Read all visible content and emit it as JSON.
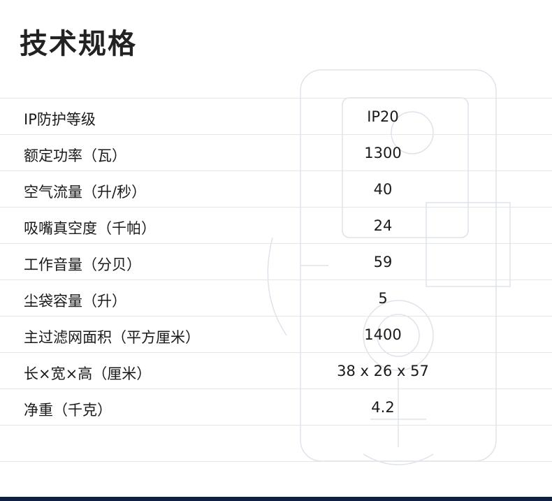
{
  "title": "技术规格",
  "specs": [
    {
      "label": "IP防护等级",
      "value": "IP20"
    },
    {
      "label": "额定功率（瓦）",
      "value": "1300"
    },
    {
      "label": "空气流量（升/秒）",
      "value": "40"
    },
    {
      "label": "吸嘴真空度（千帕）",
      "value": "24"
    },
    {
      "label": "工作音量（分贝）",
      "value": "59"
    },
    {
      "label": "尘袋容量（升）",
      "value": "5"
    },
    {
      "label": "主过滤网面积（平方厘米）",
      "value": "1400"
    },
    {
      "label": "长×宽×高（厘米）",
      "value": "38 x 26 x 57"
    },
    {
      "label": "净重（千克）",
      "value": "4.2"
    }
  ],
  "colors": {
    "footer": "#0e1f3f",
    "divider": "#e6e6e6"
  }
}
